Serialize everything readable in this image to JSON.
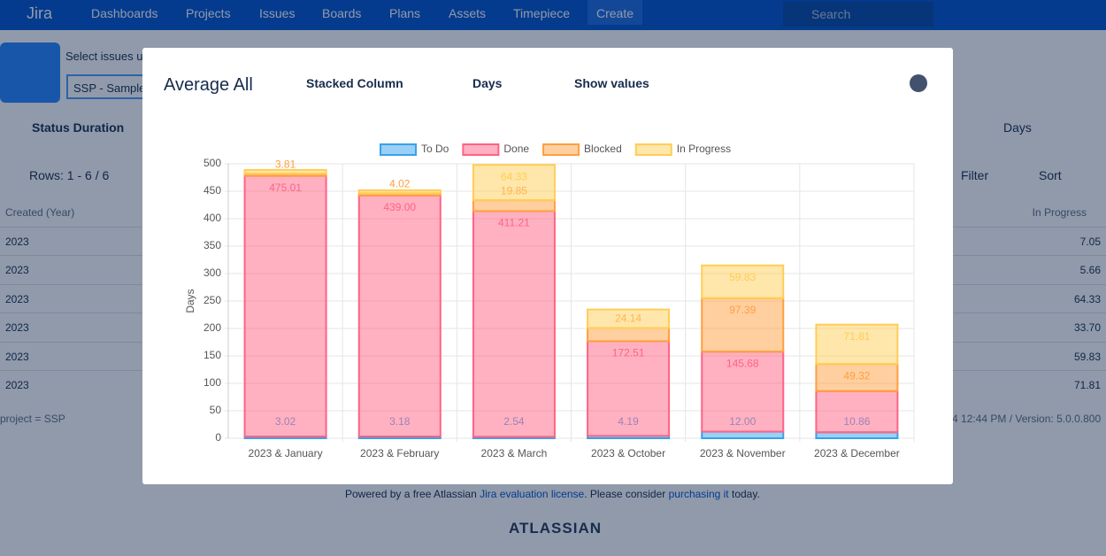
{
  "nav": {
    "logo": "Jira",
    "items": [
      "Dashboards",
      "Projects",
      "Issues",
      "Boards",
      "Plans",
      "Assets",
      "Timepiece"
    ],
    "create": "Create",
    "search": "Search"
  },
  "page": {
    "select_label": "Select issues u",
    "project_input": "SSP - Sample",
    "view": "Status Duration",
    "rows_info": "Rows: 1 - 6 / 6",
    "unit": "Days",
    "filter": "Filter",
    "sort": "Sort",
    "table": {
      "columns": [
        "Created (Year)",
        "In Progress"
      ],
      "rows": [
        [
          "2023",
          "7.05"
        ],
        [
          "2023",
          "5.66"
        ],
        [
          "2023",
          "64.33"
        ],
        [
          "2023",
          "33.70"
        ],
        [
          "2023",
          "59.83"
        ],
        [
          "2023",
          "71.81"
        ]
      ]
    },
    "footer_left": "project = SSP",
    "footer_right": "4 12:44 PM / Version: 5.0.0.800"
  },
  "powered": {
    "start": "Powered by a free Atlassian",
    "link1": "Jira evaluation license",
    "middle": ". Please consider",
    "link2": "purchasing it",
    "end": "today.",
    "brand": "ATLASSIAN"
  },
  "modal": {
    "title": "Average All",
    "chart_type": "Stacked Column",
    "unit": "Days",
    "show_values": "Show values"
  },
  "chart_data": {
    "type": "stacked-bar",
    "y_label": "Days",
    "categories": [
      "2023 & January",
      "2023 & February",
      "2023 & March",
      "2023 & October",
      "2023 & November",
      "2023 & December"
    ],
    "series": [
      {
        "name": "To Do",
        "color": "#36a2eb",
        "values": [
          3.02,
          3.18,
          2.54,
          4.19,
          12.0,
          10.86
        ],
        "value_labels": [
          "3.02",
          "3.18",
          "2.54",
          "4.19",
          "12.00",
          "10.86"
        ]
      },
      {
        "name": "Done",
        "color": "#ff6384",
        "values": [
          475.01,
          439.0,
          411.21,
          172.51,
          145.68,
          75
        ],
        "value_labels": [
          "475.01",
          "439.00",
          "411.21",
          "172.51",
          "145.68",
          null
        ]
      },
      {
        "name": "Blocked",
        "color": "#ff9f40",
        "values": [
          3.81,
          4.02,
          19.85,
          24.14,
          97.39,
          49.32
        ],
        "value_labels": [
          "3.81",
          "4.02",
          "19.85",
          "24.14",
          "97.39",
          "49.32"
        ]
      },
      {
        "name": "In Progress",
        "color": "#ffcd56",
        "values": [
          7.05,
          5.66,
          64.33,
          33.7,
          59.83,
          71.81
        ],
        "value_labels": [
          null,
          null,
          "64.33",
          null,
          "59.83",
          "71.81"
        ]
      }
    ],
    "ylim": [
      0,
      500
    ],
    "yticks": [
      0,
      50,
      100,
      150,
      200,
      250,
      300,
      350,
      400,
      450,
      500
    ],
    "grid": true,
    "legend": "top"
  }
}
